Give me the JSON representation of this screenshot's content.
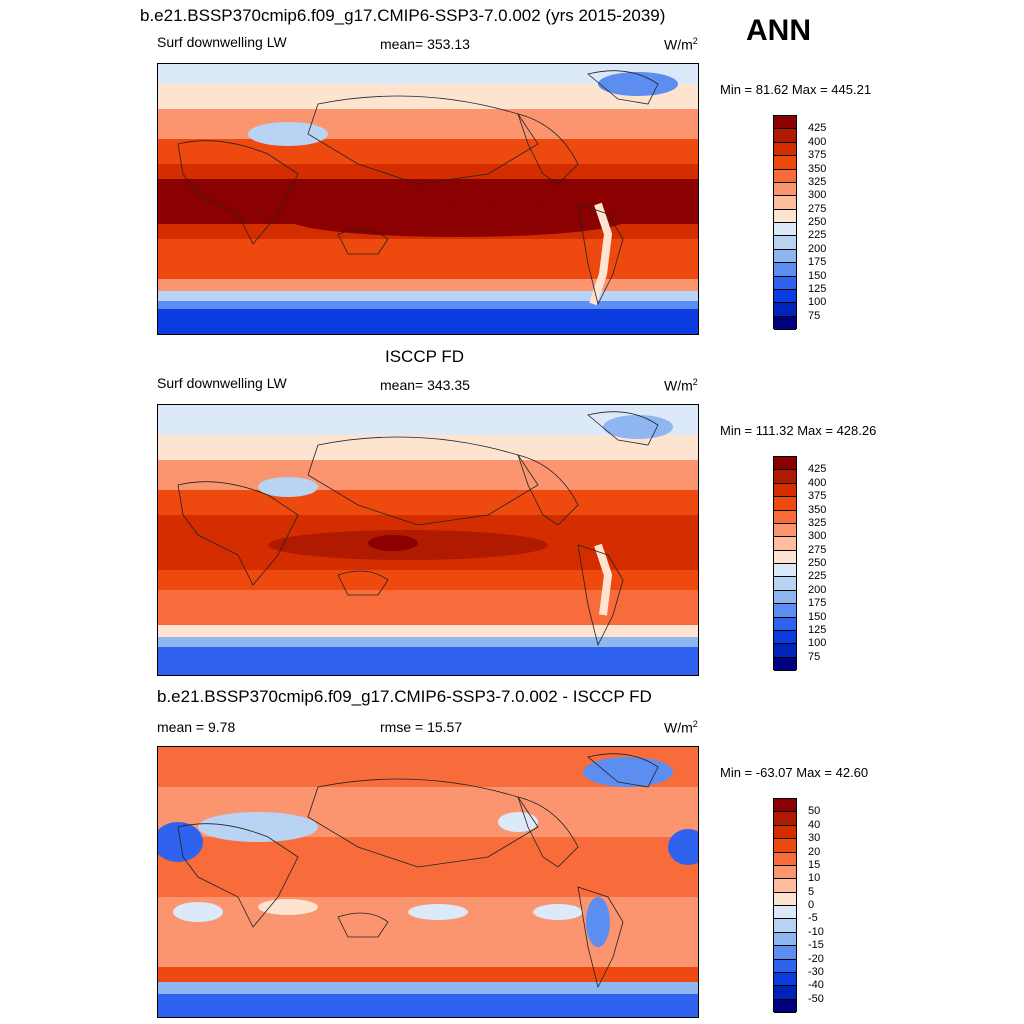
{
  "header": {
    "title": "b.e21.BSSP370cmip6.f09_g17.CMIP6-SSP3-7.0.002 (yrs 2015-2039)",
    "season": "ANN"
  },
  "panels": [
    {
      "id": "model",
      "title": "",
      "left_label": "Surf downwelling LW",
      "center_label": "mean= 353.13",
      "units": "W/m",
      "units_sup": "2",
      "minmax": "Min =  81.62 Max = 445.21",
      "levels": [
        "425",
        "400",
        "375",
        "350",
        "325",
        "300",
        "275",
        "250",
        "225",
        "200",
        "175",
        "150",
        "125",
        "100",
        "75"
      ],
      "colors": [
        "#8b0000",
        "#b01a00",
        "#d42e00",
        "#ee4a10",
        "#f86b3a",
        "#fb9570",
        "#fdbd9e",
        "#fde4d0",
        "#dce9f8",
        "#b9d3f5",
        "#8eb6f0",
        "#5b8ef0",
        "#2f63ef",
        "#0a3ce0",
        "#0024b8",
        "#000080"
      ]
    },
    {
      "id": "obs",
      "title": "ISCCP FD",
      "left_label": "Surf downwelling LW",
      "center_label": "mean= 343.35",
      "units": "W/m",
      "units_sup": "2",
      "minmax": "Min = 111.32 Max = 428.26",
      "levels": [
        "425",
        "400",
        "375",
        "350",
        "325",
        "300",
        "275",
        "250",
        "225",
        "200",
        "175",
        "150",
        "125",
        "100",
        "75"
      ],
      "colors": [
        "#8b0000",
        "#b01a00",
        "#d42e00",
        "#ee4a10",
        "#f86b3a",
        "#fb9570",
        "#fdbd9e",
        "#fde4d0",
        "#dce9f8",
        "#b9d3f5",
        "#8eb6f0",
        "#5b8ef0",
        "#2f63ef",
        "#0a3ce0",
        "#0024b8",
        "#000080"
      ]
    },
    {
      "id": "diff",
      "title": "b.e21.BSSP370cmip6.f09_g17.CMIP6-SSP3-7.0.002 - ISCCP FD",
      "left_label": "mean =   9.78",
      "center_label": "rmse =  15.57",
      "units": "W/m",
      "units_sup": "2",
      "minmax": "Min = -63.07 Max =  42.60",
      "levels": [
        "50",
        "40",
        "30",
        "20",
        "15",
        "10",
        "5",
        "0",
        "-5",
        "-10",
        "-15",
        "-20",
        "-30",
        "-40",
        "-50"
      ],
      "colors": [
        "#8b0000",
        "#b01a00",
        "#d42e00",
        "#ee4a10",
        "#f86b3a",
        "#fb9570",
        "#fdbd9e",
        "#fde4d0",
        "#dce9f8",
        "#b9d3f5",
        "#8eb6f0",
        "#5b8ef0",
        "#2f63ef",
        "#0a3ce0",
        "#0024b8",
        "#000080"
      ]
    }
  ]
}
